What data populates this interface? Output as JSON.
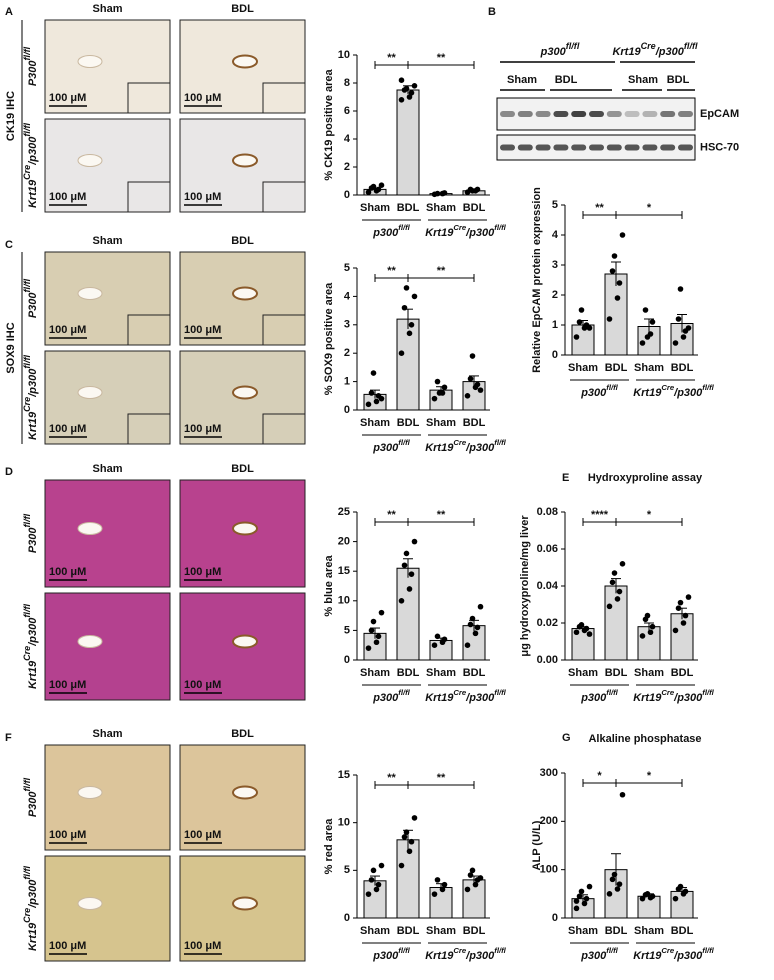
{
  "letters": [
    "A",
    "B",
    "C",
    "D",
    "E",
    "F",
    "G"
  ],
  "group_labels": [
    [
      {
        "text": "p300"
      },
      {
        "text": "fl/fl",
        "sup": true
      }
    ],
    [
      {
        "text": "Krt19"
      },
      {
        "text": "Cre",
        "sup": true
      },
      {
        "text": "/p300"
      },
      {
        "text": "fl/fl",
        "sup": true
      }
    ]
  ],
  "row_labels": [
    [
      {
        "text": "P300"
      },
      {
        "text": "fl/fl",
        "sup": true
      }
    ],
    [
      {
        "text": "Krt19"
      },
      {
        "text": "Cre",
        "sup": true
      },
      {
        "text": "/p300"
      },
      {
        "text": "fl/fl",
        "sup": true
      }
    ]
  ],
  "image_panels": [
    {
      "stain": "CK19 IHC",
      "columns": [
        "Sham",
        "BDL"
      ],
      "scale": "100 μM"
    },
    {
      "stain": "SOX9 IHC",
      "columns": [
        "Sham",
        "BDL"
      ],
      "scale": "100 μM"
    },
    {
      "columns": [
        "Sham",
        "BDL"
      ],
      "scale": "100 μM"
    },
    {
      "columns": [
        "Sham",
        "BDL"
      ],
      "scale": "100 μM"
    }
  ],
  "blot": {
    "lanes": [
      "Sham",
      "BDL",
      "Sham",
      "BDL"
    ],
    "proteins": [
      "EpCAM",
      "HSC-70"
    ]
  },
  "chart_data": [
    {
      "type": "bar",
      "ylabel": "% CK19 positive area",
      "categories": [
        "Sham",
        "BDL",
        "Sham",
        "BDL"
      ],
      "color": "#d9d9d9",
      "values": [
        0.4,
        7.5,
        0.1,
        0.3
      ],
      "errors": [
        0.1,
        0.3,
        0.03,
        0.07
      ],
      "points": [
        [
          0.2,
          0.3,
          0.4,
          0.5,
          0.6,
          0.7
        ],
        [
          6.8,
          7.0,
          7.3,
          7.5,
          7.6,
          7.8,
          8.2
        ],
        [
          0.05,
          0.1,
          0.15,
          0.1
        ],
        [
          0.2,
          0.3,
          0.4,
          0.4,
          0.3
        ]
      ],
      "ylim": [
        0,
        10
      ],
      "yticks": [
        0,
        2,
        4,
        6,
        8,
        10
      ],
      "brackets": [
        {
          "from": 0,
          "to": 1,
          "label": "**"
        },
        {
          "from": 1,
          "to": 3,
          "label": "**"
        }
      ]
    },
    {
      "type": "bar",
      "ylabel": "Relative EpCAM protein expression",
      "categories": [
        "Sham",
        "BDL",
        "Sham",
        "BDL"
      ],
      "color": "#d9d9d9",
      "values": [
        1.0,
        2.7,
        0.95,
        1.05
      ],
      "errors": [
        0.15,
        0.4,
        0.25,
        0.3
      ],
      "points": [
        [
          0.6,
          0.9,
          1.0,
          1.1,
          1.5,
          0.9
        ],
        [
          1.2,
          1.9,
          2.4,
          2.8,
          3.3,
          4.0
        ],
        [
          0.4,
          0.7,
          1.1,
          1.5,
          0.6
        ],
        [
          0.4,
          0.6,
          0.8,
          1.2,
          2.2,
          0.9
        ]
      ],
      "ylim": [
        0,
        5
      ],
      "yticks": [
        0,
        1,
        2,
        3,
        4,
        5
      ],
      "brackets": [
        {
          "from": 0,
          "to": 1,
          "label": "**"
        },
        {
          "from": 1,
          "to": 3,
          "label": "*"
        }
      ]
    },
    {
      "type": "bar",
      "ylabel": "% SOX9 positive area",
      "categories": [
        "Sham",
        "BDL",
        "Sham",
        "BDL"
      ],
      "color": "#d9d9d9",
      "values": [
        0.55,
        3.2,
        0.7,
        1.0
      ],
      "errors": [
        0.15,
        0.35,
        0.12,
        0.2
      ],
      "points": [
        [
          0.2,
          0.3,
          0.5,
          0.6,
          1.3,
          0.4
        ],
        [
          2.0,
          2.7,
          3.0,
          3.6,
          4.3,
          4.0
        ],
        [
          0.4,
          0.6,
          0.8,
          1.0,
          0.6
        ],
        [
          0.5,
          0.8,
          0.9,
          1.1,
          1.9,
          0.7
        ]
      ],
      "ylim": [
        0,
        5
      ],
      "yticks": [
        0,
        1,
        2,
        3,
        4,
        5
      ],
      "brackets": [
        {
          "from": 0,
          "to": 1,
          "label": "**"
        },
        {
          "from": 1,
          "to": 3,
          "label": "**"
        }
      ]
    },
    {
      "type": "bar",
      "ylabel": "% blue area",
      "categories": [
        "Sham",
        "BDL",
        "Sham",
        "BDL"
      ],
      "color": "#d9d9d9",
      "values": [
        4.5,
        15.5,
        3.3,
        5.8
      ],
      "errors": [
        0.9,
        1.6,
        0.4,
        0.9
      ],
      "points": [
        [
          2.0,
          3,
          4,
          5,
          6.5,
          8
        ],
        [
          10,
          12,
          14.5,
          16,
          18,
          20
        ],
        [
          2.5,
          3,
          3.5,
          4
        ],
        [
          2.5,
          4.5,
          5.5,
          6,
          7,
          9
        ]
      ],
      "ylim": [
        0,
        25
      ],
      "yticks": [
        0,
        5,
        10,
        15,
        20,
        25
      ],
      "brackets": [
        {
          "from": 0,
          "to": 1,
          "label": "**"
        },
        {
          "from": 1,
          "to": 3,
          "label": "**"
        }
      ]
    },
    {
      "type": "bar",
      "title": "Hydroxyproline assay",
      "ylabel": "μg hydroxyproline/mg liver",
      "categories": [
        "Sham",
        "BDL",
        "Sham",
        "BDL"
      ],
      "color": "#d9d9d9",
      "values": [
        0.017,
        0.04,
        0.018,
        0.025
      ],
      "errors": [
        0.001,
        0.004,
        0.002,
        0.003
      ],
      "points": [
        [
          0.015,
          0.016,
          0.017,
          0.018,
          0.019,
          0.014
        ],
        [
          0.029,
          0.033,
          0.037,
          0.042,
          0.047,
          0.052
        ],
        [
          0.013,
          0.015,
          0.018,
          0.022,
          0.024
        ],
        [
          0.016,
          0.02,
          0.024,
          0.028,
          0.031,
          0.034
        ]
      ],
      "ylim": [
        0,
        0.08
      ],
      "yticks": [
        {
          "value": 0,
          "label": "0.00"
        },
        {
          "value": 0.02,
          "label": "0.02"
        },
        {
          "value": 0.04,
          "label": "0.04"
        },
        {
          "value": 0.06,
          "label": "0.06"
        },
        {
          "value": 0.08,
          "label": "0.08"
        }
      ],
      "brackets": [
        {
          "from": 0,
          "to": 1,
          "label": "****"
        },
        {
          "from": 1,
          "to": 3,
          "label": "*"
        }
      ]
    },
    {
      "type": "bar",
      "ylabel": "% red area",
      "categories": [
        "Sham",
        "BDL",
        "Sham",
        "BDL"
      ],
      "color": "#d9d9d9",
      "values": [
        3.9,
        8.2,
        3.2,
        4.0
      ],
      "errors": [
        0.5,
        1.0,
        0.4,
        0.4
      ],
      "points": [
        [
          2.5,
          3,
          3.5,
          4,
          5,
          5.5
        ],
        [
          5.5,
          7,
          8,
          8.5,
          9,
          10.5
        ],
        [
          2.5,
          3,
          3.5,
          4
        ],
        [
          3,
          3.5,
          4,
          4.5,
          5,
          4.2
        ]
      ],
      "ylim": [
        0,
        15
      ],
      "yticks": [
        0,
        5,
        10,
        15
      ],
      "brackets": [
        {
          "from": 0,
          "to": 1,
          "label": "**"
        },
        {
          "from": 1,
          "to": 3,
          "label": "**"
        }
      ]
    },
    {
      "type": "bar",
      "title": "Alkaline phosphatase",
      "ylabel": "ALP (U/L)",
      "categories": [
        "Sham",
        "BDL",
        "Sham",
        "BDL"
      ],
      "color": "#d9d9d9",
      "values": [
        40,
        100,
        45,
        55
      ],
      "errors": [
        8,
        33,
        5,
        8
      ],
      "points": [
        [
          20,
          30,
          40,
          45,
          55,
          65,
          35
        ],
        [
          50,
          60,
          70,
          80,
          90,
          255
        ],
        [
          40,
          42,
          45,
          48,
          50
        ],
        [
          40,
          50,
          55,
          60,
          65
        ]
      ],
      "ylim": [
        0,
        300
      ],
      "yticks": [
        0,
        100,
        200,
        300
      ],
      "brackets": [
        {
          "from": 0,
          "to": 1,
          "label": "*"
        },
        {
          "from": 1,
          "to": 3,
          "label": "*"
        }
      ]
    }
  ]
}
